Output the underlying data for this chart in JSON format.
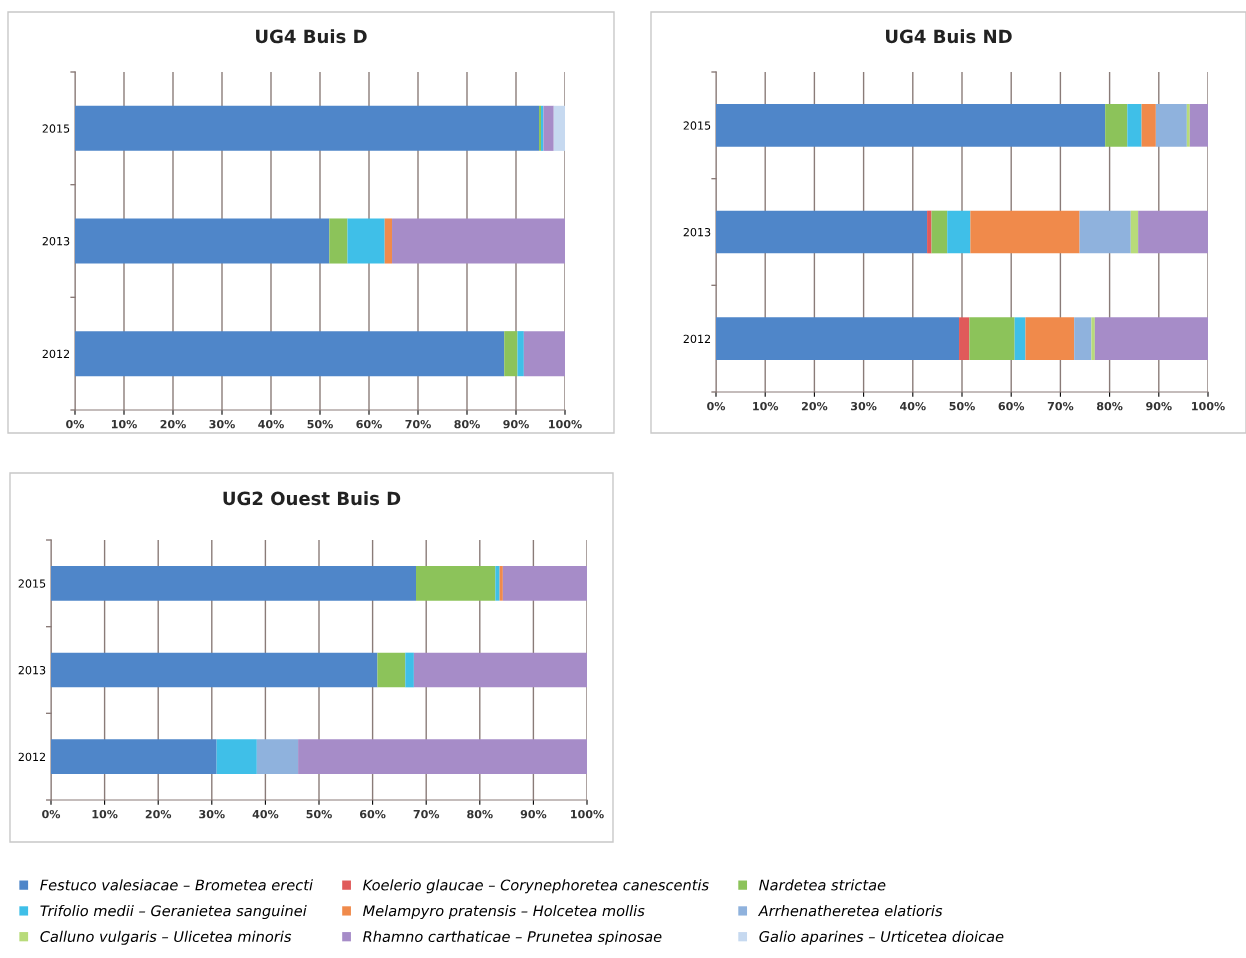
{
  "chart_data": [
    {
      "type": "bar",
      "orientation": "horizontal",
      "stacked": true,
      "title": "UG4 Buis D",
      "categories": [
        "2015",
        "2013",
        "2012"
      ],
      "xlim": [
        0,
        100
      ],
      "xticks": [
        {
          "value": 0,
          "label": "0%"
        },
        {
          "value": 10,
          "label": "10%"
        },
        {
          "value": 20,
          "label": "20%"
        },
        {
          "value": 30,
          "label": "30%"
        },
        {
          "value": 40,
          "label": "40%"
        },
        {
          "value": 50,
          "label": "50%"
        },
        {
          "value": 60,
          "label": "60%"
        },
        {
          "value": 70,
          "label": "70%"
        },
        {
          "value": 80,
          "label": "80%"
        },
        {
          "value": 90,
          "label": "90%"
        },
        {
          "value": 100,
          "label": "100%"
        }
      ],
      "grid": "x",
      "legend": "bottom",
      "series": [
        {
          "name": "Festuco valesiacae – Brometea erecti",
          "color": "#4f86c9",
          "values": [
            94.7,
            51.9,
            87.6
          ]
        },
        {
          "name": "Koelerio glaucae – Corynephoretea canescentis",
          "color": "#e05a5a",
          "values": [
            null,
            null,
            null
          ]
        },
        {
          "name": "Nardetea strictae",
          "color": "#8cc35a",
          "values": [
            0.4,
            3.7,
            2.7
          ]
        },
        {
          "name": "Trifolio medii – Geranietea sanguinei",
          "color": "#3fbfe8",
          "values": [
            0.5,
            7.6,
            1.3
          ]
        },
        {
          "name": "Melampyro pratensis – Holcetea mollis",
          "color": "#f08a4b",
          "values": [
            null,
            1.5,
            null
          ]
        },
        {
          "name": "Arrhenatheretea elatioris",
          "color": "#8fb2dd",
          "values": [
            null,
            null,
            null
          ]
        },
        {
          "name": "Calluno vulgaris – Ulicetea minoris",
          "color": "#b8db7a",
          "values": [
            null,
            null,
            null
          ]
        },
        {
          "name": "Rhamno carthaticae – Prunetea spinosae",
          "color": "#a68cc8",
          "values": [
            2.1,
            35.3,
            8.4
          ]
        },
        {
          "name": "Galio aparines – Urticetea dioicae",
          "color": "#c6d9f0",
          "values": [
            2.3,
            null,
            null
          ]
        }
      ]
    },
    {
      "type": "bar",
      "orientation": "horizontal",
      "stacked": true,
      "title": "UG4 Buis ND",
      "categories": [
        "2015",
        "2013",
        "2012"
      ],
      "xlim": [
        0,
        100
      ],
      "xticks": [
        {
          "value": 0,
          "label": "0%"
        },
        {
          "value": 10,
          "label": "10%"
        },
        {
          "value": 20,
          "label": "20%"
        },
        {
          "value": 30,
          "label": "30%"
        },
        {
          "value": 40,
          "label": "40%"
        },
        {
          "value": 50,
          "label": "50%"
        },
        {
          "value": 60,
          "label": "60%"
        },
        {
          "value": 70,
          "label": "70%"
        },
        {
          "value": 80,
          "label": "80%"
        },
        {
          "value": 90,
          "label": "90%"
        },
        {
          "value": 100,
          "label": "100%"
        }
      ],
      "grid": "x",
      "series": [
        {
          "color": "#4f86c9",
          "values": [
            79.1,
            42.9,
            49.4
          ]
        },
        {
          "color": "#e05a5a",
          "values": [
            null,
            0.9,
            2.1
          ]
        },
        {
          "color": "#8cc35a",
          "values": [
            4.5,
            3.2,
            9.2
          ]
        },
        {
          "color": "#3fbfe8",
          "values": [
            2.9,
            4.7,
            2.2
          ]
        },
        {
          "color": "#f08a4b",
          "values": [
            2.9,
            22.2,
            9.9
          ]
        },
        {
          "color": "#8fb2dd",
          "values": [
            6.3,
            10.4,
            3.5
          ]
        },
        {
          "color": "#b8db7a",
          "values": [
            0.6,
            1.5,
            0.7
          ]
        },
        {
          "color": "#a68cc8",
          "values": [
            3.7,
            14.2,
            23.0
          ]
        },
        {
          "color": "#c6d9f0",
          "values": [
            null,
            null,
            null
          ]
        }
      ]
    },
    {
      "type": "bar",
      "orientation": "horizontal",
      "stacked": true,
      "title": "UG2 Ouest Buis D",
      "categories": [
        "2015",
        "2013",
        "2012"
      ],
      "xlim": [
        0,
        100
      ],
      "xticks": [
        {
          "value": 0,
          "label": "0%"
        },
        {
          "value": 10,
          "label": "10%"
        },
        {
          "value": 20,
          "label": "20%"
        },
        {
          "value": 30,
          "label": "30%"
        },
        {
          "value": 40,
          "label": "40%"
        },
        {
          "value": 50,
          "label": "50%"
        },
        {
          "value": 60,
          "label": "60%"
        },
        {
          "value": 70,
          "label": "70%"
        },
        {
          "value": 80,
          "label": "80%"
        },
        {
          "value": 90,
          "label": "90%"
        },
        {
          "value": 100,
          "label": "100%"
        }
      ],
      "grid": "x",
      "series": [
        {
          "color": "#4f86c9",
          "values": [
            68.1,
            60.9,
            30.9
          ]
        },
        {
          "color": "#e05a5a",
          "values": [
            null,
            null,
            null
          ]
        },
        {
          "color": "#8cc35a",
          "values": [
            14.8,
            5.2,
            null
          ]
        },
        {
          "color": "#3fbfe8",
          "values": [
            0.8,
            1.6,
            7.5
          ]
        },
        {
          "color": "#f08a4b",
          "values": [
            0.6,
            null,
            null
          ]
        },
        {
          "color": "#8fb2dd",
          "values": [
            null,
            null,
            7.7
          ]
        },
        {
          "color": "#b8db7a",
          "values": [
            null,
            null,
            null
          ]
        },
        {
          "color": "#a68cc8",
          "values": [
            15.7,
            32.3,
            53.9
          ]
        },
        {
          "color": "#c6d9f0",
          "values": [
            null,
            null,
            null
          ]
        }
      ]
    }
  ]
}
